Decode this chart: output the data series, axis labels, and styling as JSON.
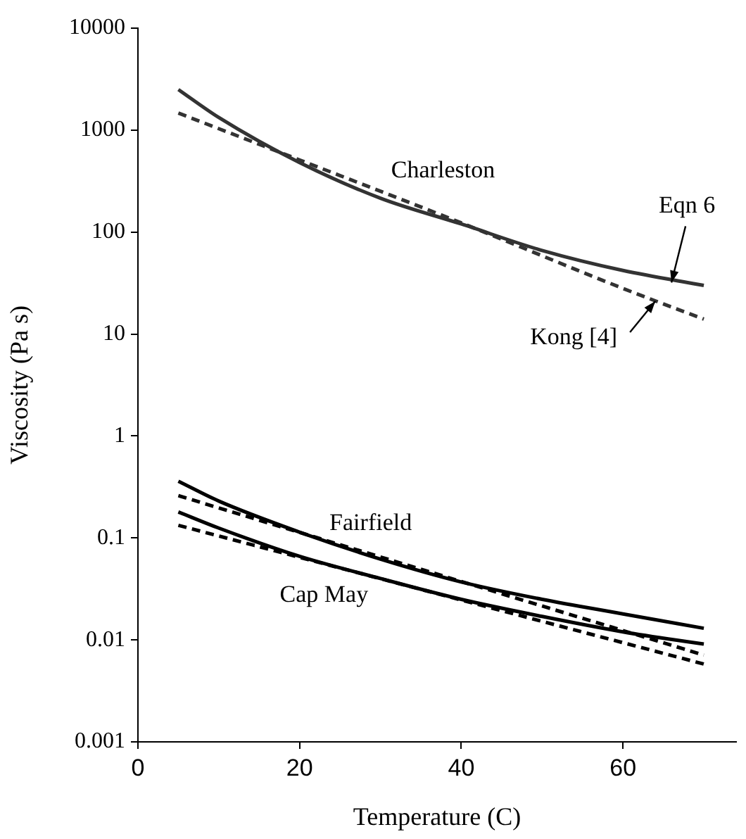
{
  "chart_data": {
    "type": "line",
    "xlabel": "Temperature (C)",
    "ylabel": "Viscosity (Pa s)",
    "xlim": [
      0,
      74
    ],
    "xticks": [
      0,
      20,
      40,
      60
    ],
    "ylim": [
      0.001,
      10000
    ],
    "yticks": [
      0.001,
      0.01,
      0.1,
      1,
      10,
      100,
      1000,
      10000
    ],
    "log": "y",
    "grid": false,
    "legend": false,
    "marker": "none",
    "series": [
      {
        "color": "#333333",
        "line_style": "solid",
        "x": [
          5,
          10,
          20,
          30,
          40,
          50,
          60,
          70
        ],
        "values": [
          2500,
          1330,
          480,
          215,
          120,
          66,
          42,
          30
        ]
      },
      {
        "color": "#333333",
        "line_style": "dashed",
        "x": [
          5,
          20,
          40,
          60,
          70
        ],
        "values": [
          1470,
          510,
          123,
          28,
          14
        ]
      },
      {
        "color": "#000000",
        "line_style": "solid",
        "x": [
          5,
          10,
          20,
          30,
          40,
          50,
          60,
          70
        ],
        "values": [
          0.36,
          0.23,
          0.114,
          0.062,
          0.037,
          0.025,
          0.018,
          0.013
        ]
      },
      {
        "color": "#000000",
        "line_style": "dashed",
        "x": [
          5,
          70
        ],
        "values": [
          0.26,
          0.0071
        ]
      },
      {
        "color": "#000000",
        "line_style": "solid",
        "x": [
          5,
          10,
          20,
          30,
          40,
          50,
          60,
          70
        ],
        "values": [
          0.18,
          0.125,
          0.066,
          0.04,
          0.025,
          0.017,
          0.012,
          0.0091
        ]
      },
      {
        "color": "#000000",
        "line_style": "dashed",
        "x": [
          5,
          70
        ],
        "values": [
          0.133,
          0.0058
        ]
      }
    ],
    "annotations": [
      "Charleston",
      "Fairfield",
      "Cap May",
      {
        "text": "Eqn 6",
        "x": 66,
        "y": 32
      },
      {
        "text": "Kong [4]",
        "x": 64,
        "y": 21
      }
    ]
  }
}
